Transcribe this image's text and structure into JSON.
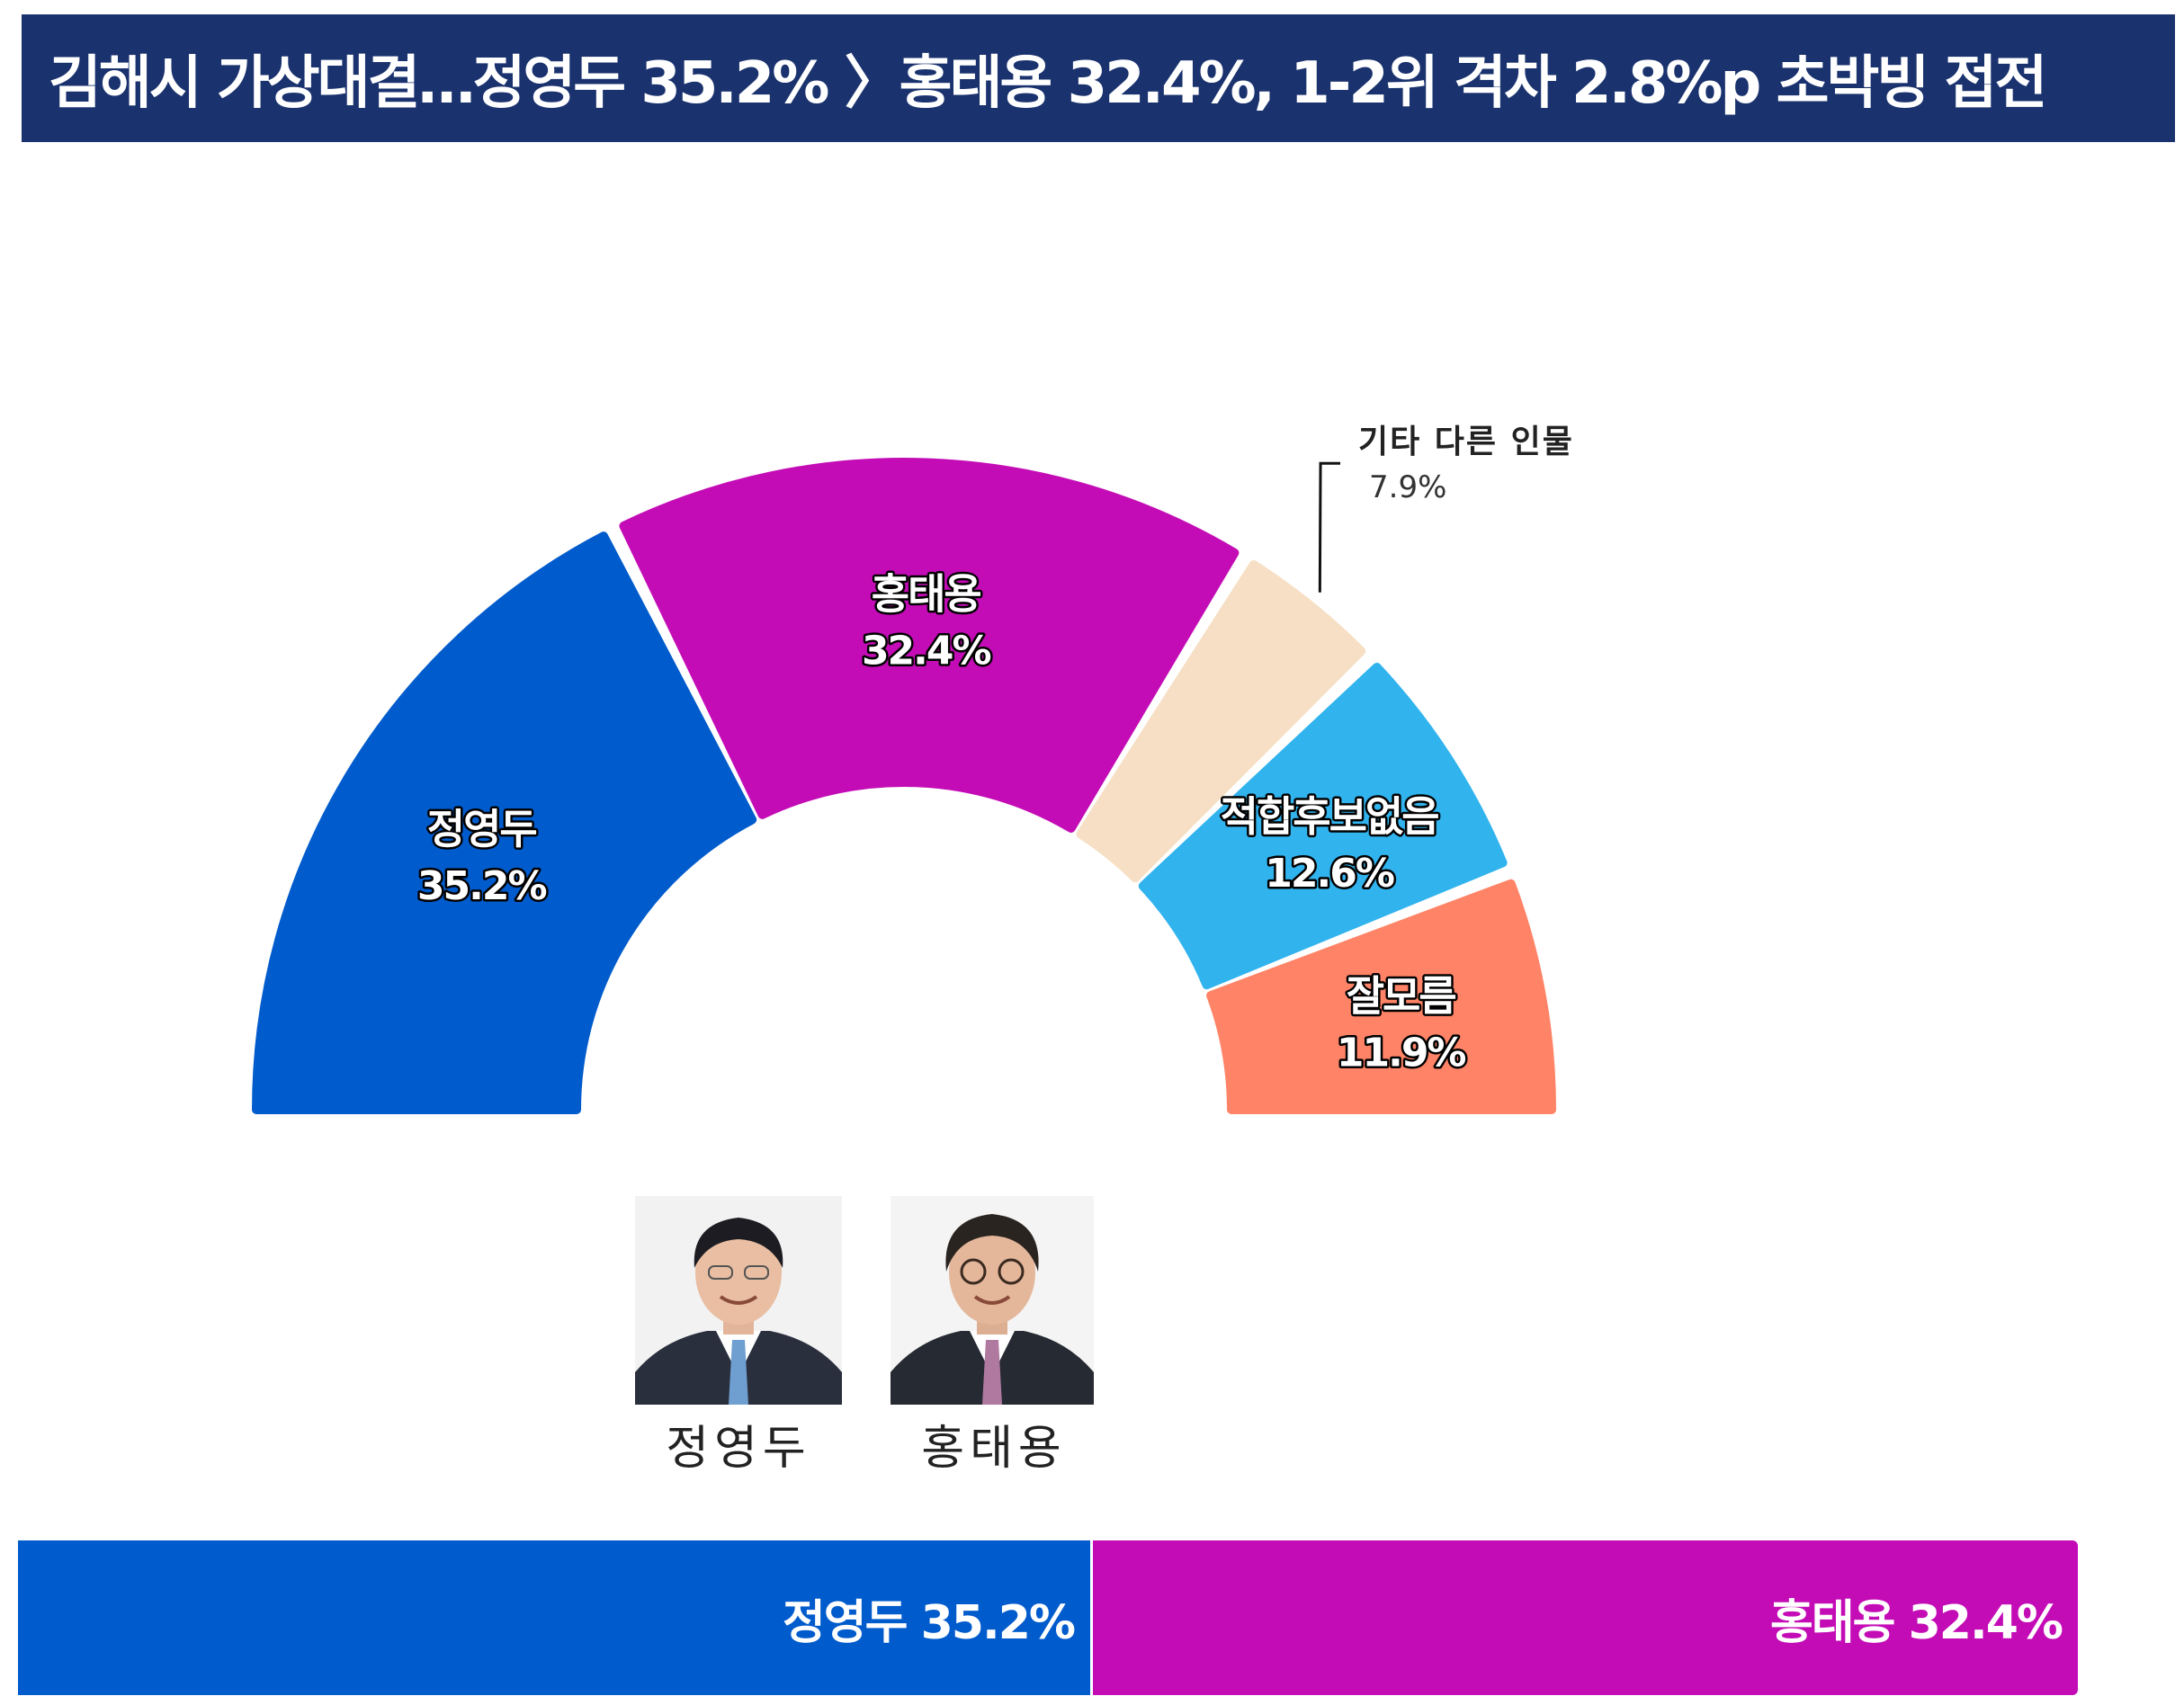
{
  "title": "김해시 가상대결…정영두 35.2% 〉홍태용 32.4%, 1-2위 격차 2.8%p 초박빙 접전",
  "chart_data": {
    "type": "pie",
    "variant": "half-donut",
    "slices": [
      {
        "name": "정영두",
        "value": 35.2,
        "label": "35.2%",
        "color": "#005bcc",
        "label_style": "inside"
      },
      {
        "name": "홍태용",
        "value": 32.4,
        "label": "32.4%",
        "color": "#c40cb6",
        "label_style": "inside"
      },
      {
        "name": "기타 다른 인물",
        "value": 7.9,
        "label": "7.9%",
        "color": "#f6dfc4",
        "label_style": "callout"
      },
      {
        "name": "적합후보없음",
        "value": 12.6,
        "label": "12.6%",
        "color": "#31b3ee",
        "label_style": "inside"
      },
      {
        "name": "잘모름",
        "value": 11.9,
        "label": "11.9%",
        "color": "#ff8366",
        "label_style": "inside"
      }
    ]
  },
  "candidates": [
    {
      "name": "정영두",
      "photo": "candidate-photo",
      "suit": "#2a2f3d",
      "tie": "#6f9fd0"
    },
    {
      "name": "홍태용",
      "photo": "candidate-photo",
      "suit": "#262a33",
      "tie": "#b07aa0"
    }
  ],
  "comparison_bar": {
    "left": {
      "name": "정영두",
      "value": 35.2,
      "label": "정영두 35.2%",
      "color": "#005bcc"
    },
    "right": {
      "name": "홍태용",
      "value": 32.4,
      "label": "홍태용 32.4%",
      "color": "#c40cb6"
    }
  }
}
